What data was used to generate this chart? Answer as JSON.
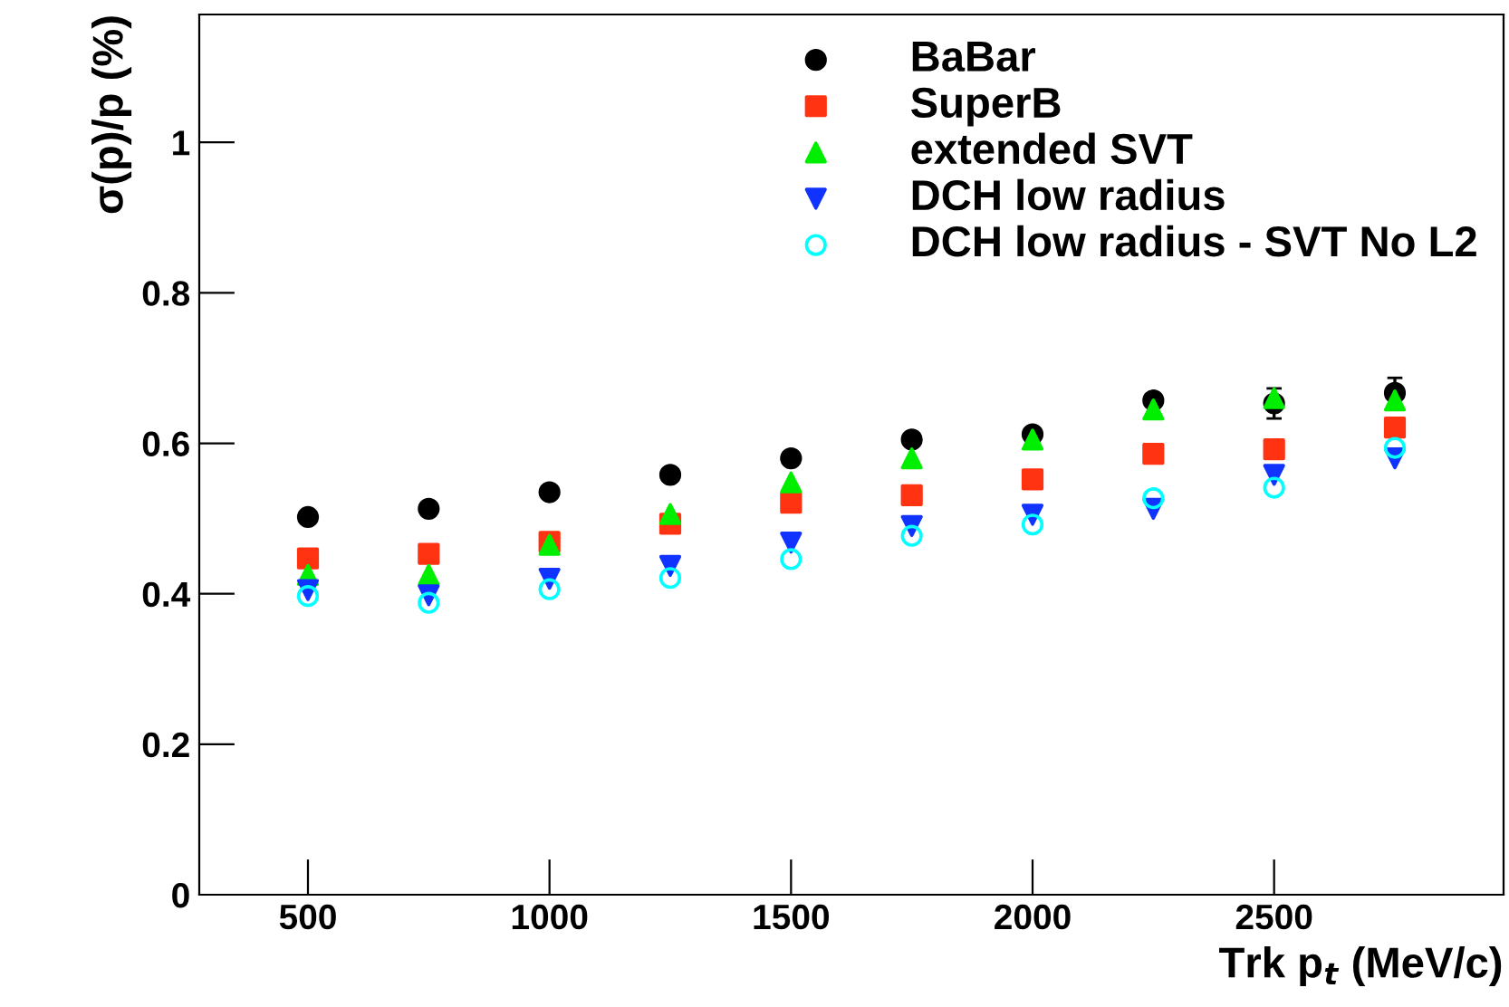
{
  "chart_data": {
    "type": "scatter",
    "xlabel": "Trk p$_{t}$ (MeV/c)",
    "ylabel": "σ(p)/p (%)",
    "x": [
      500,
      750,
      1000,
      1250,
      1500,
      1750,
      2000,
      2250,
      2500,
      2750
    ],
    "xlim": [
      275,
      2975
    ],
    "xticks": [
      500,
      1000,
      1500,
      2000,
      2500
    ],
    "ylim": [
      0,
      1.17
    ],
    "yticks": [
      0,
      0.2,
      0.4,
      0.6,
      0.8,
      1
    ],
    "grid": false,
    "legend": "top right",
    "series": [
      {
        "name": "BaBar",
        "color": "#000000",
        "marker": "circle",
        "values": [
          0.502,
          0.513,
          0.535,
          0.558,
          0.58,
          0.605,
          0.612,
          0.657,
          0.653,
          0.667
        ],
        "errors": [
          null,
          null,
          null,
          null,
          null,
          null,
          null,
          null,
          0.02,
          0.02
        ]
      },
      {
        "name": "SuperB",
        "color": "#ff3311",
        "marker": "square",
        "values": [
          0.447,
          0.453,
          0.469,
          0.493,
          0.521,
          0.531,
          0.552,
          0.586,
          0.592,
          0.621
        ]
      },
      {
        "name": "extended SVT",
        "color": "#00ee00",
        "marker": "triangle",
        "values": [
          0.425,
          0.425,
          0.465,
          0.506,
          0.548,
          0.58,
          0.605,
          0.645,
          0.66,
          0.657
        ]
      },
      {
        "name": "DCH low radius",
        "color": "#1133ff",
        "marker": "triangle-down",
        "values": [
          0.405,
          0.398,
          0.42,
          0.437,
          0.468,
          0.49,
          0.505,
          0.513,
          0.558,
          0.58
        ]
      },
      {
        "name": "DCH low radius - SVT No L2",
        "color": "#00ffff",
        "marker": "circle-open",
        "values": [
          0.397,
          0.388,
          0.406,
          0.421,
          0.446,
          0.477,
          0.492,
          0.527,
          0.541,
          0.594
        ]
      }
    ]
  }
}
